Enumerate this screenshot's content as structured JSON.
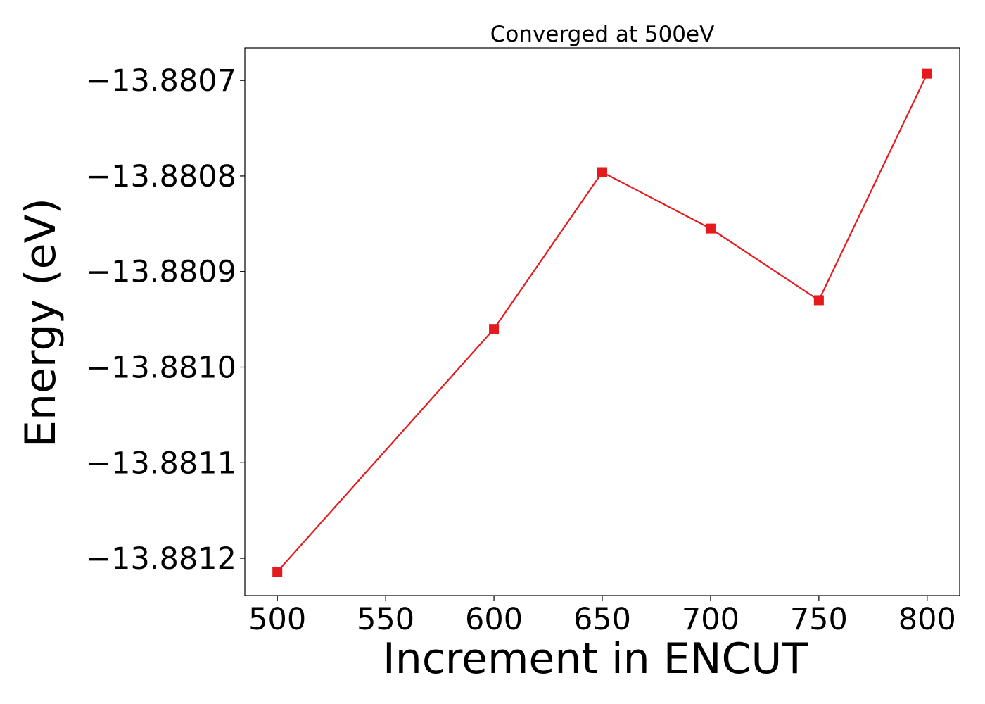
{
  "chart_data": {
    "type": "line",
    "title": "Converged at 500eV",
    "xlabel": "Increment in ENCUT",
    "ylabel": "Energy (eV)",
    "x": [
      500,
      600,
      650,
      700,
      750,
      800
    ],
    "series": [
      {
        "color": "#e41a1c",
        "marker": "square",
        "values": [
          -13.881214,
          -13.88096,
          -13.880796,
          -13.880855,
          -13.88093,
          -13.880693
        ]
      }
    ],
    "xlim": [
      485,
      815
    ],
    "ylim": [
      -13.881239,
      -13.880666
    ],
    "xticks": [
      500,
      550,
      600,
      650,
      700,
      750,
      800
    ],
    "xtick_labels": [
      "500",
      "550",
      "600",
      "650",
      "700",
      "750",
      "800"
    ],
    "yticks": [
      -13.8812,
      -13.8811,
      -13.881,
      -13.8809,
      -13.8808,
      -13.8807
    ],
    "ytick_labels": [
      "−13.8812",
      "−13.8811",
      "−13.8810",
      "−13.8809",
      "−13.8808",
      "−13.8807"
    ],
    "grid": false,
    "legend": "none"
  }
}
